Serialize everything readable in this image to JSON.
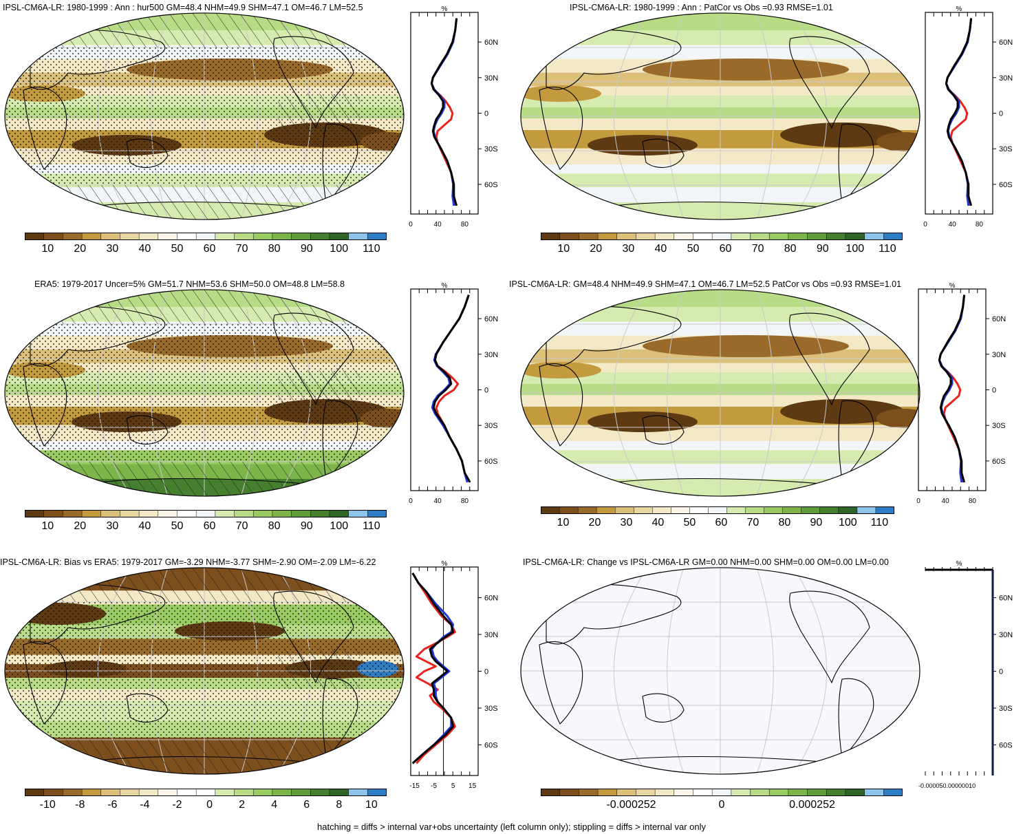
{
  "panels": [
    {
      "id": "p1",
      "title": "IPSL-CM6A-LR: 1980-1999 : Ann : hur500 GM=48.4 NHM=49.9 SHM=47.1 OM=46.7 LM=52.5",
      "map_style": "climo",
      "hatching": true,
      "stippling": true,
      "colorbar_labels": [
        "10",
        "20",
        "30",
        "40",
        "50",
        "60",
        "70",
        "80",
        "90",
        "100",
        "110"
      ],
      "profile": {
        "unit": "%",
        "xticks": [
          "0",
          "40",
          "80"
        ],
        "yticks": [
          "60N",
          "30N",
          "0",
          "30S",
          "60S"
        ]
      }
    },
    {
      "id": "p2",
      "title": "IPSL-CM6A-LR: 1980-1999 : Ann : PatCor vs Obs =0.93 RMSE=1.01",
      "map_style": "climo",
      "hatching": false,
      "stippling": false,
      "colorbar_labels": [
        "10",
        "20",
        "30",
        "40",
        "50",
        "60",
        "70",
        "80",
        "90",
        "100",
        "110"
      ],
      "profile": {
        "unit": "%",
        "xticks": [
          "0",
          "40",
          "80"
        ],
        "yticks": [
          "60N",
          "30N",
          "0",
          "30S",
          "60S"
        ]
      }
    },
    {
      "id": "p3",
      "title": "ERA5: 1979-2017 Uncer=5% GM=51.7 NHM=53.6 SHM=50.0 OM=48.8 LM=58.8",
      "map_style": "obs",
      "hatching": true,
      "stippling": true,
      "colorbar_labels": [
        "10",
        "20",
        "30",
        "40",
        "50",
        "60",
        "70",
        "80",
        "90",
        "100",
        "110"
      ],
      "profile": {
        "unit": "%",
        "xticks": [
          "0",
          "40",
          "80"
        ],
        "yticks": [
          "60N",
          "30N",
          "0",
          "30S",
          "60S"
        ]
      }
    },
    {
      "id": "p4",
      "title": "IPSL-CM6A-LR: GM=48.4 NHM=49.9 SHM=47.1 OM=46.7 LM=52.5 PatCor vs Obs =0.93 RMSE=1.01",
      "map_style": "climo",
      "hatching": false,
      "stippling": false,
      "colorbar_labels": [
        "10",
        "20",
        "30",
        "40",
        "50",
        "60",
        "70",
        "80",
        "90",
        "100",
        "110"
      ],
      "profile": {
        "unit": "%",
        "xticks": [
          "0",
          "40",
          "80"
        ],
        "yticks": [
          "60N",
          "30N",
          "0",
          "30S",
          "60S"
        ]
      }
    },
    {
      "id": "p5",
      "title": "IPSL-CM6A-LR: Bias vs ERA5: 1979-2017 GM=-3.29 NHM=-3.77 SHM=-2.90 OM=-2.09 LM=-6.22",
      "map_style": "bias",
      "hatching": true,
      "stippling": true,
      "colorbar_labels": [
        "-10",
        "-8",
        "-6",
        "-4",
        "-2",
        "0",
        "2",
        "4",
        "6",
        "8",
        "10"
      ],
      "profile": {
        "unit": "%",
        "xticks": [
          "-15",
          "-5",
          "5",
          "15"
        ],
        "yticks": [
          "60N",
          "30N",
          "0",
          "30S",
          "60S"
        ]
      }
    },
    {
      "id": "p6",
      "title": "IPSL-CM6A-LR: Change vs IPSL-CM6A-LR GM=0.00 NHM=0.00 SHM=0.00 OM=0.00 LM=0.00",
      "map_style": "blank",
      "hatching": false,
      "stippling": false,
      "colorbar_labels": [
        "-0.000252",
        "0",
        "0.000252"
      ],
      "profile": {
        "unit": "%",
        "xticks": [
          "-0.000050.00000010"
        ],
        "yticks": [
          "60N",
          "30N",
          "0",
          "30S",
          "60S"
        ]
      }
    }
  ],
  "footnote": "hatching = diffs > internal var+obs uncertainty (left column only); stippling = diffs > internal var only",
  "colors": {
    "climo_scale": [
      "#5e3a12",
      "#7d4f1c",
      "#9a6a2a",
      "#c49a3f",
      "#dcc079",
      "#e9d7a1",
      "#f3e9c7",
      "#fbf6e8",
      "#ffffff",
      "#f2f6f9",
      "#d5ebb0",
      "#b7dc85",
      "#9acb63",
      "#7db54a",
      "#5f9c3a",
      "#467f2e",
      "#2f6526",
      "#8cc4ec",
      "#2e7cc4"
    ],
    "bias_scale": [
      "#5e3a12",
      "#7d4f1c",
      "#9a6a2a",
      "#c49a3f",
      "#dcc079",
      "#e9d7a1",
      "#f3e9c7",
      "#fbf6e8",
      "#ffffff",
      "#ffffff",
      "#d5ebb0",
      "#b7dc85",
      "#9acb63",
      "#7db54a",
      "#5f9c3a",
      "#467f2e",
      "#2f6526",
      "#8cc4ec",
      "#2e7cc4"
    ],
    "profile_red": "#e8221c",
    "profile_blue": "#1f37d6",
    "profile_black": "#000000"
  },
  "chart_data": [
    {
      "type": "line",
      "panel": "p1",
      "title": "IPSL-CM6A-LR: 1980-1999 : Ann : hur500 GM=48.4 NHM=49.9 SHM=47.1 OM=46.7 LM=52.5",
      "xlabel": "%",
      "xlim": [
        0,
        100
      ],
      "ylim": [
        -85,
        85
      ],
      "series": [
        {
          "lat": [
            80,
            70,
            60,
            50,
            40,
            30,
            25,
            20,
            15,
            10,
            5,
            0,
            -5,
            -10,
            -15,
            -20,
            -25,
            -30,
            -40,
            -50,
            -60,
            -70,
            -78
          ],
          "values": [
            68,
            66,
            62,
            54,
            43,
            33,
            31,
            34,
            44,
            52,
            58,
            62,
            60,
            50,
            40,
            38,
            40,
            44,
            52,
            60,
            64,
            64,
            66
          ]
        },
        {
          "lat": [
            80,
            70,
            60,
            50,
            40,
            30,
            25,
            20,
            15,
            10,
            5,
            0,
            -5,
            -10,
            -15,
            -20,
            -25,
            -30,
            -40,
            -50,
            -60,
            -70,
            -78
          ],
          "values": [
            68,
            66,
            63,
            55,
            44,
            33,
            31,
            35,
            43,
            50,
            50,
            46,
            40,
            36,
            34,
            36,
            40,
            45,
            54,
            60,
            63,
            62,
            64
          ]
        },
        {
          "lat": [
            80,
            70,
            60,
            50,
            40,
            30,
            25,
            20,
            15,
            10,
            5,
            0,
            -5,
            -10,
            -15,
            -20,
            -25,
            -30,
            -40,
            -50,
            -60,
            -70,
            -78
          ],
          "values": [
            68,
            66,
            62,
            54,
            43,
            33,
            31,
            34,
            42,
            48,
            48,
            44,
            38,
            35,
            33,
            35,
            40,
            45,
            54,
            60,
            64,
            64,
            68
          ]
        }
      ]
    },
    {
      "type": "line",
      "panel": "p2",
      "title": "IPSL-CM6A-LR: 1980-1999 : Ann : PatCor vs Obs =0.93 RMSE=1.01",
      "xlabel": "%",
      "xlim": [
        0,
        100
      ],
      "ylim": [
        -85,
        85
      ],
      "series": [
        {
          "lat": [
            80,
            70,
            60,
            50,
            40,
            30,
            25,
            20,
            15,
            10,
            5,
            0,
            -5,
            -10,
            -15,
            -20,
            -25,
            -30,
            -40,
            -50,
            -60,
            -70,
            -78
          ],
          "values": [
            68,
            66,
            62,
            54,
            43,
            33,
            31,
            34,
            44,
            52,
            58,
            62,
            60,
            50,
            40,
            38,
            40,
            44,
            52,
            60,
            64,
            64,
            66
          ]
        },
        {
          "lat": [
            80,
            70,
            60,
            50,
            40,
            30,
            25,
            20,
            15,
            10,
            5,
            0,
            -5,
            -10,
            -15,
            -20,
            -25,
            -30,
            -40,
            -50,
            -60,
            -70,
            -78
          ],
          "values": [
            68,
            66,
            63,
            55,
            44,
            33,
            31,
            35,
            43,
            50,
            50,
            46,
            40,
            36,
            34,
            36,
            40,
            45,
            54,
            60,
            63,
            62,
            64
          ]
        },
        {
          "lat": [
            80,
            70,
            60,
            50,
            40,
            30,
            25,
            20,
            15,
            10,
            5,
            0,
            -5,
            -10,
            -15,
            -20,
            -25,
            -30,
            -40,
            -50,
            -60,
            -70,
            -78
          ],
          "values": [
            68,
            66,
            62,
            54,
            43,
            33,
            31,
            34,
            42,
            48,
            48,
            44,
            38,
            35,
            33,
            35,
            40,
            45,
            54,
            60,
            64,
            64,
            68
          ]
        }
      ]
    },
    {
      "type": "line",
      "panel": "p3",
      "title": "ERA5: 1979-2017 Uncer=5% GM=51.7 NHM=53.6 SHM=50.0 OM=48.8 LM=58.8",
      "xlabel": "%",
      "xlim": [
        0,
        100
      ],
      "ylim": [
        -85,
        85
      ],
      "series": [
        {
          "lat": [
            80,
            70,
            60,
            50,
            40,
            30,
            25,
            20,
            15,
            10,
            5,
            0,
            -5,
            -10,
            -15,
            -20,
            -25,
            -30,
            -40,
            -50,
            -60,
            -70,
            -78
          ],
          "values": [
            86,
            80,
            72,
            60,
            48,
            38,
            36,
            40,
            52,
            62,
            70,
            64,
            50,
            42,
            38,
            40,
            45,
            50,
            58,
            68,
            76,
            80,
            84
          ]
        },
        {
          "lat": [
            80,
            70,
            60,
            50,
            40,
            30,
            25,
            20,
            15,
            10,
            5,
            0,
            -5,
            -10,
            -15,
            -20,
            -25,
            -30,
            -40,
            -50,
            -60,
            -70,
            -78
          ],
          "values": [
            86,
            80,
            72,
            60,
            48,
            37,
            35,
            39,
            48,
            56,
            58,
            50,
            40,
            34,
            32,
            36,
            42,
            48,
            58,
            68,
            76,
            80,
            84
          ]
        },
        {
          "lat": [
            80,
            70,
            60,
            50,
            40,
            30,
            25,
            20,
            15,
            10,
            5,
            0,
            -5,
            -10,
            -15,
            -20,
            -25,
            -30,
            -40,
            -50,
            -60,
            -70,
            -78
          ],
          "values": [
            86,
            80,
            72,
            60,
            48,
            38,
            36,
            40,
            50,
            58,
            60,
            52,
            42,
            36,
            34,
            38,
            44,
            50,
            58,
            68,
            76,
            80,
            88
          ]
        }
      ]
    },
    {
      "type": "line",
      "panel": "p4",
      "title": "IPSL-CM6A-LR: GM=48.4 NHM=49.9 SHM=47.1 OM=46.7 LM=52.5 PatCor vs Obs =0.93 RMSE=1.01",
      "xlabel": "%",
      "xlim": [
        0,
        100
      ],
      "ylim": [
        -85,
        85
      ],
      "series": [
        {
          "lat": [
            80,
            70,
            60,
            50,
            40,
            30,
            25,
            20,
            15,
            10,
            5,
            0,
            -5,
            -10,
            -15,
            -20,
            -25,
            -30,
            -40,
            -50,
            -60,
            -70,
            -78
          ],
          "values": [
            68,
            66,
            62,
            54,
            43,
            33,
            31,
            34,
            44,
            52,
            58,
            62,
            60,
            50,
            40,
            38,
            40,
            44,
            52,
            60,
            64,
            64,
            66
          ]
        },
        {
          "lat": [
            80,
            70,
            60,
            50,
            40,
            30,
            25,
            20,
            15,
            10,
            5,
            0,
            -5,
            -10,
            -15,
            -20,
            -25,
            -30,
            -40,
            -50,
            -60,
            -70,
            -78
          ],
          "values": [
            68,
            66,
            63,
            55,
            44,
            33,
            31,
            35,
            43,
            50,
            50,
            46,
            40,
            36,
            34,
            36,
            40,
            45,
            54,
            60,
            63,
            62,
            64
          ]
        },
        {
          "lat": [
            80,
            70,
            60,
            50,
            40,
            30,
            25,
            20,
            15,
            10,
            5,
            0,
            -5,
            -10,
            -15,
            -20,
            -25,
            -30,
            -40,
            -50,
            -60,
            -70,
            -78
          ],
          "values": [
            68,
            66,
            62,
            54,
            43,
            33,
            31,
            34,
            42,
            48,
            48,
            44,
            38,
            35,
            33,
            35,
            40,
            45,
            54,
            60,
            64,
            64,
            68
          ]
        }
      ]
    },
    {
      "type": "line",
      "panel": "p5",
      "title": "IPSL-CM6A-LR: Bias vs ERA5: 1979-2017 GM=-3.29 NHM=-3.77 SHM=-2.90 OM=-2.09 LM=-6.22",
      "xlabel": "%",
      "xlim": [
        -17,
        18
      ],
      "ylim": [
        -85,
        85
      ],
      "series": [
        {
          "lat": [
            80,
            72,
            65,
            55,
            45,
            38,
            32,
            28,
            22,
            18,
            12,
            8,
            4,
            0,
            -5,
            -10,
            -15,
            -20,
            -25,
            -30,
            -38,
            -45,
            -52,
            -60,
            -68,
            -75
          ],
          "values": [
            -16,
            -13,
            -10,
            -6,
            -1,
            4,
            6,
            2,
            -5,
            -10,
            -14,
            -9,
            -4,
            -10,
            -14,
            -8,
            -3,
            -7,
            -5,
            -1,
            4,
            6,
            2,
            -4,
            -10,
            -14
          ]
        },
        {
          "lat": [
            80,
            72,
            65,
            55,
            45,
            38,
            32,
            28,
            22,
            18,
            12,
            8,
            4,
            0,
            -5,
            -10,
            -15,
            -20,
            -25,
            -30,
            -38,
            -45,
            -52,
            -60,
            -68,
            -75
          ],
          "values": [
            -16,
            -13,
            -9,
            -4,
            2,
            5,
            4,
            0,
            -4,
            -6,
            -5,
            -3,
            0,
            3,
            -1,
            -5,
            -4,
            -4,
            -3,
            0,
            4,
            4,
            0,
            -5,
            -11,
            -16
          ]
        },
        {
          "lat": [
            80,
            72,
            65,
            55,
            45,
            38,
            32,
            28,
            22,
            18,
            12,
            8,
            4,
            0,
            -5,
            -10,
            -15,
            -20,
            -25,
            -30,
            -38,
            -45,
            -52,
            -60,
            -68,
            -75
          ],
          "values": [
            -16,
            -13,
            -9,
            -5,
            0,
            4,
            5,
            1,
            -4,
            -7,
            -6,
            -4,
            -1,
            2,
            -2,
            -6,
            -5,
            -5,
            -3,
            0,
            4,
            5,
            1,
            -5,
            -11,
            -16
          ]
        }
      ]
    },
    {
      "type": "line",
      "panel": "p6",
      "title": "IPSL-CM6A-LR: Change vs IPSL-CM6A-LR GM=0.00 NHM=0.00 SHM=0.00 OM=0.00 LM=0.00",
      "xlabel": "%",
      "xlim": [
        -6e-05,
        1e-05
      ],
      "ylim": [
        -85,
        85
      ],
      "series": [
        {
          "lat": [
            82,
            -82
          ],
          "values": [
            1e-05,
            1e-05
          ]
        }
      ]
    }
  ]
}
